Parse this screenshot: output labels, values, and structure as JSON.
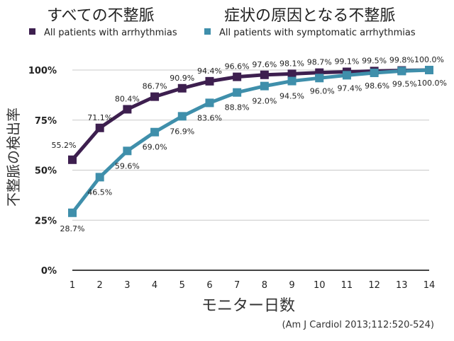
{
  "titles": {
    "left": "すべての不整脈",
    "right": "症状の原因となる不整脈"
  },
  "colors": {
    "all": "#3d1f4f",
    "symptomatic": "#3f8fab",
    "grid": "#c8c8c8",
    "axis": "#444444"
  },
  "citation": "(Am J Cardiol 2013;112:520-524)",
  "chart_data": {
    "type": "line",
    "xlabel": "モニター日数",
    "ylabel": "不整脈の検出率",
    "x": [
      1,
      2,
      3,
      4,
      5,
      6,
      7,
      8,
      9,
      10,
      11,
      12,
      13,
      14
    ],
    "x_tick_labels": [
      "1",
      "2",
      "3",
      "4",
      "5",
      "6",
      "7",
      "8",
      "9",
      "10",
      "11",
      "12",
      "13",
      "14"
    ],
    "ylim": [
      0,
      100
    ],
    "y_ticks": [
      0,
      25,
      50,
      75,
      100
    ],
    "y_tick_labels": [
      "0%",
      "25%",
      "50%",
      "75%",
      "100%"
    ],
    "grid": "horizontal",
    "legend_position": "top",
    "series": [
      {
        "name": "All patients with arrhythmias",
        "values": [
          55.2,
          71.1,
          80.4,
          86.7,
          90.9,
          94.4,
          96.6,
          97.6,
          98.1,
          98.7,
          99.1,
          99.5,
          99.8,
          100.0
        ],
        "labels": [
          "55.2%",
          "71.1%",
          "80.4%",
          "86.7%",
          "90.9%",
          "94.4%",
          "96.6%",
          "97.6%",
          "98.1%",
          "98.7%",
          "99.1%",
          "99.5%",
          "99.8%",
          "100.0%"
        ]
      },
      {
        "name": "All patients with symptomatic arrhythmias",
        "values": [
          28.7,
          46.5,
          59.6,
          69.0,
          76.9,
          83.6,
          88.8,
          92.0,
          94.5,
          96.0,
          97.4,
          98.6,
          99.5,
          100.0
        ],
        "labels": [
          "28.7%",
          "46.5%",
          "59.6%",
          "69.0%",
          "76.9%",
          "83.6%",
          "88.8%",
          "92.0%",
          "94.5%",
          "96.0%",
          "97.4%",
          "98.6%",
          "99.5%",
          "100.0%"
        ]
      }
    ]
  }
}
